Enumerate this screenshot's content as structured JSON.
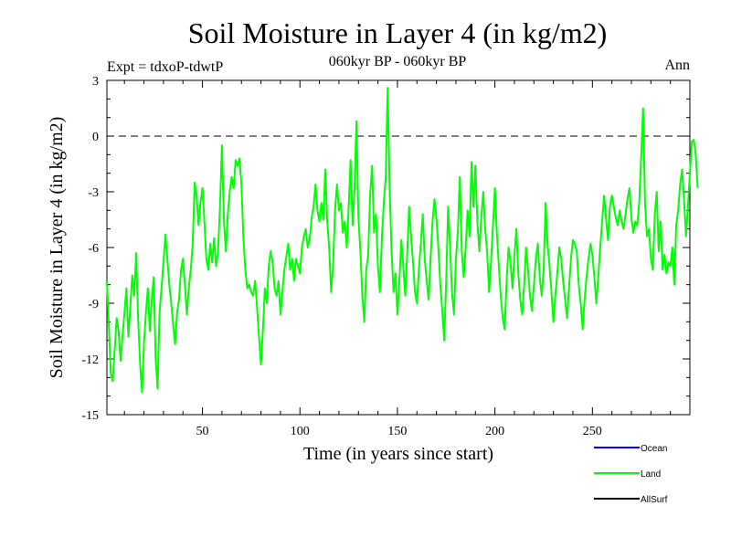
{
  "chart_data": {
    "type": "line",
    "title": "Soil Moisture in Layer 4 (in kg/m2)",
    "subtitle": "060kyr BP - 060kyr BP",
    "left_note": "Expt = tdxoP-tdwtP",
    "right_note": "Ann",
    "xlabel": "Time (in years since start)",
    "ylabel": "Soil Moisture in Layer 4 (in kg/m2)",
    "xlim": [
      1,
      300
    ],
    "ylim": [
      -15,
      3
    ],
    "x_ticks": [
      50,
      100,
      150,
      200,
      250
    ],
    "y_ticks": [
      3,
      0,
      -3,
      -6,
      -9,
      -12,
      -15
    ],
    "zero_line": true,
    "grid": false,
    "legend_position": "bottom-right",
    "legend": [
      {
        "name": "Ocean",
        "color": "#0000ff"
      },
      {
        "name": "Land",
        "color": "#00ff00"
      },
      {
        "name": "AllSurf",
        "color": "#000000"
      }
    ],
    "series": [
      {
        "name": "Land",
        "color": "#00ff00",
        "x_start": 1,
        "x_step": 1,
        "values": [
          -7.8,
          -10.2,
          -12.8,
          -13.2,
          -11.5,
          -9.8,
          -10.5,
          -12.1,
          -10.8,
          -9.5,
          -8.2,
          -10.8,
          -9.2,
          -7.5,
          -8.6,
          -6.3,
          -9.8,
          -12.2,
          -13.8,
          -11.2,
          -9.5,
          -8.2,
          -10.5,
          -8.8,
          -7.6,
          -12.0,
          -13.6,
          -9.5,
          -8.2,
          -6.8,
          -5.3,
          -6.6,
          -8.0,
          -9.0,
          -10.2,
          -11.2,
          -9.5,
          -8.8,
          -7.2,
          -6.6,
          -8.0,
          -9.6,
          -8.2,
          -7.2,
          -5.8,
          -2.5,
          -3.2,
          -4.8,
          -3.6,
          -2.8,
          -4.6,
          -6.6,
          -7.2,
          -5.8,
          -6.8,
          -5.5,
          -7.0,
          -6.2,
          -3.8,
          -0.5,
          -4.5,
          -6.2,
          -4.2,
          -3.0,
          -2.2,
          -2.8,
          -1.3,
          -1.6,
          -1.2,
          -2.6,
          -5.5,
          -7.2,
          -8.2,
          -8.0,
          -8.4,
          -8.6,
          -7.8,
          -9.2,
          -10.8,
          -12.3,
          -10.5,
          -8.2,
          -9.0,
          -7.0,
          -6.2,
          -6.8,
          -8.2,
          -8.6,
          -7.8,
          -9.6,
          -8.4,
          -7.2,
          -6.5,
          -5.8,
          -7.2,
          -6.6,
          -7.8,
          -6.6,
          -7.0,
          -7.4,
          -6.0,
          -5.4,
          -5.0,
          -6.0,
          -5.6,
          -4.4,
          -3.8,
          -2.6,
          -4.0,
          -4.6,
          -3.6,
          -4.5,
          -1.8,
          -4.6,
          -6.0,
          -8.4,
          -7.0,
          -4.0,
          -2.6,
          -4.0,
          -3.6,
          -5.2,
          -4.6,
          -6.0,
          -3.8,
          -1.3,
          -4.8,
          -2.8,
          0.8,
          -4.4,
          -6.2,
          -8.6,
          -10.0,
          -7.2,
          -6.4,
          -3.2,
          -1.6,
          -5.2,
          -4.2,
          -7.0,
          -8.4,
          -5.6,
          -3.6,
          -2.2,
          2.6,
          -2.8,
          -6.2,
          -8.4,
          -7.4,
          -9.6,
          -7.8,
          -5.6,
          -7.0,
          -8.6,
          -6.4,
          -3.8,
          -5.4,
          -6.8,
          -8.4,
          -9.0,
          -7.2,
          -5.8,
          -4.2,
          -6.6,
          -7.8,
          -8.8,
          -6.6,
          -4.6,
          -3.4,
          -4.4,
          -6.0,
          -8.0,
          -9.4,
          -11.0,
          -7.8,
          -3.8,
          -6.0,
          -8.4,
          -9.6,
          -6.6,
          -5.2,
          -2.2,
          -6.2,
          -7.6,
          -6.0,
          -4.0,
          -5.4,
          -1.4,
          -3.8,
          -1.6,
          -4.6,
          -6.2,
          -4.4,
          -3.0,
          -5.0,
          -6.2,
          -8.4,
          -6.8,
          -4.8,
          -2.8,
          -5.2,
          -7.0,
          -8.6,
          -9.8,
          -10.4,
          -7.8,
          -6.0,
          -6.8,
          -8.2,
          -6.4,
          -5.0,
          -7.4,
          -8.8,
          -9.6,
          -8.0,
          -6.0,
          -7.2,
          -8.6,
          -9.4,
          -8.0,
          -6.6,
          -5.8,
          -7.6,
          -8.6,
          -7.2,
          -3.6,
          -5.8,
          -7.0,
          -8.4,
          -10.0,
          -8.6,
          -7.4,
          -6.0,
          -6.6,
          -7.8,
          -8.8,
          -9.8,
          -8.2,
          -6.6,
          -5.6,
          -5.8,
          -6.2,
          -8.0,
          -9.0,
          -10.4,
          -8.8,
          -7.6,
          -6.6,
          -5.8,
          -6.4,
          -7.6,
          -9.0,
          -7.6,
          -6.0,
          -4.6,
          -3.2,
          -4.4,
          -5.6,
          -3.8,
          -3.2,
          -3.8,
          -4.4,
          -4.8,
          -4.0,
          -4.6,
          -5.0,
          -4.2,
          -3.4,
          -2.8,
          -4.4,
          -5.2,
          -4.6,
          -4.8,
          -3.6,
          -1.2,
          1.5,
          -3.6,
          -5.4,
          -5.0,
          -6.6,
          -7.2,
          -4.2,
          -3.0,
          -6.2,
          -4.6,
          -7.2,
          -6.4,
          -7.4,
          -6.8,
          -7.0,
          -6.0,
          -8.0,
          -4.8,
          -4.0,
          -2.6,
          -1.8,
          -3.4,
          -5.4,
          -3.8,
          -2.0,
          -0.3,
          -0.2,
          -1.0,
          -2.8
        ]
      }
    ]
  }
}
